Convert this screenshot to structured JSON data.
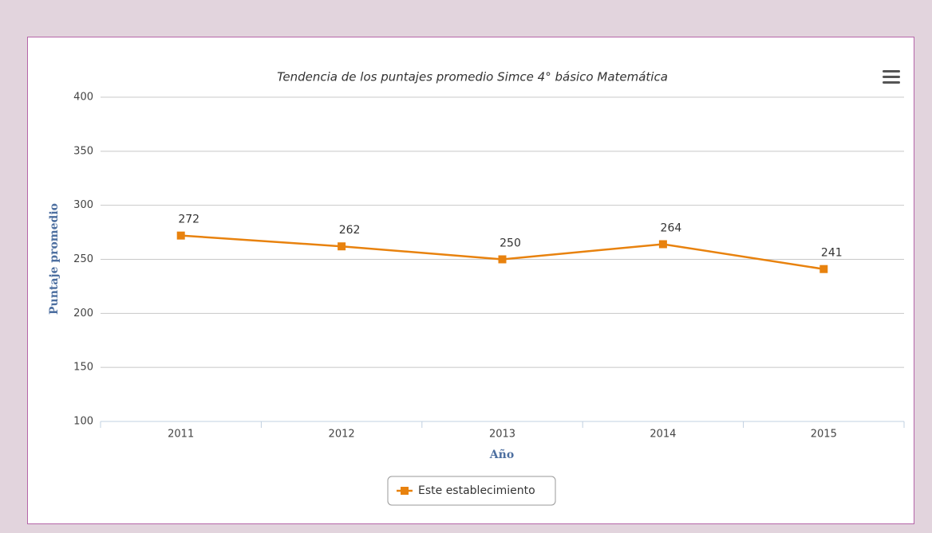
{
  "chart_data": {
    "type": "line",
    "title": "Tendencia de los puntajes promedio Simce 4° básico Matemática",
    "x_label": "Año",
    "y_label": "Puntaje promedio",
    "categories": [
      "2011",
      "2012",
      "2013",
      "2014",
      "2015"
    ],
    "series": [
      {
        "name": "Este establecimiento",
        "color": "#e8820e",
        "values": [
          272,
          262,
          250,
          264,
          241
        ]
      }
    ],
    "ylim": [
      100,
      400
    ],
    "yticks": [
      100,
      150,
      200,
      250,
      300,
      350,
      400
    ],
    "grid": true,
    "legend": "bottom"
  }
}
